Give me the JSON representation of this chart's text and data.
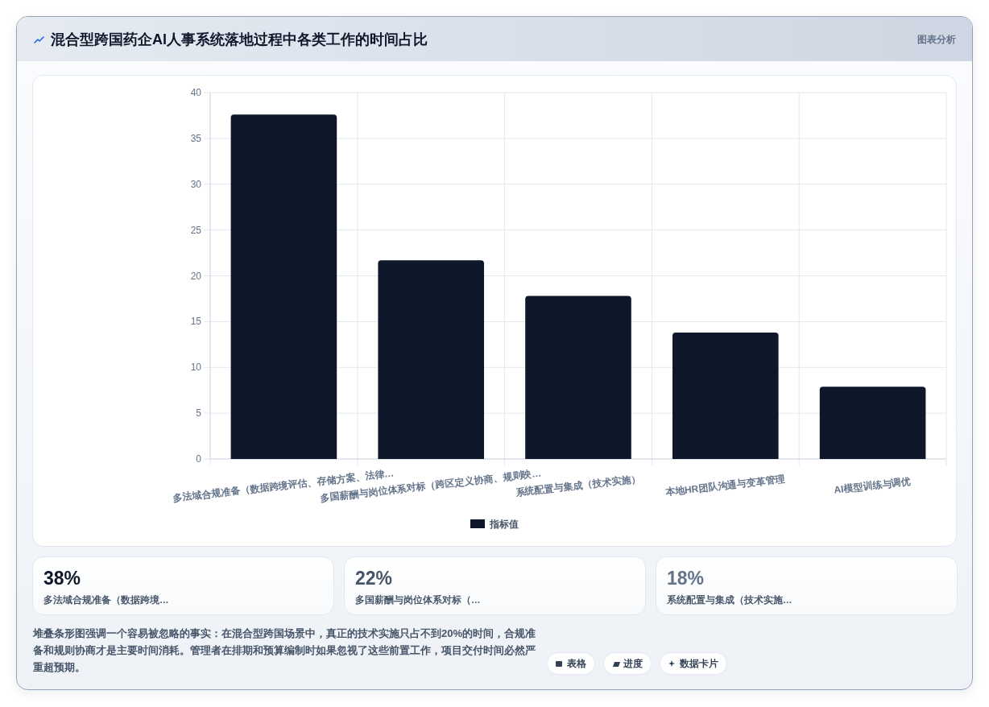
{
  "chart_data": [
    {
      "type": "bar",
      "title": "混合型跨国药企AI人事系统落地过程中各类工作的时间占比",
      "categories": [
        "多法域合规准备（数据跨境评估、存储方案、法律…",
        "多国薪酬与岗位体系对标（跨区定义协商、规则映…",
        "系统配置与集成（技术实施）",
        "本地HR团队沟通与变革管理",
        "AI模型训练与调优"
      ],
      "series": [
        {
          "name": "指标值",
          "color": "#0f172a",
          "values": [
            37.6,
            21.7,
            17.8,
            13.8,
            7.9
          ]
        }
      ],
      "ylim": [
        0,
        40
      ],
      "yticks": [
        0,
        5,
        10,
        15,
        20,
        25,
        30,
        35,
        40
      ],
      "grid": true,
      "legend": "bottom",
      "annotations": [
        "图表分析",
        "堆叠条形图强调一个容易被忽略的事实：在混合型跨国场景中，真正的技术实施只占不到20%的时间，合规准备和规则协商才是主要时间消耗。管理者在排期和预算编制时如果忽视了这些前置工作，项目交付时间必然严重超预期。",
        "表格",
        "进度",
        "数据卡片"
      ]
    },
    {
      "type": "other",
      "annotations": [
        "38%",
        "多法域合规准备（数据跨境…",
        "22%",
        "多国薪酬与岗位体系对标（…",
        "18%",
        "系统配置与集成（技术实施…"
      ]
    }
  ]
}
